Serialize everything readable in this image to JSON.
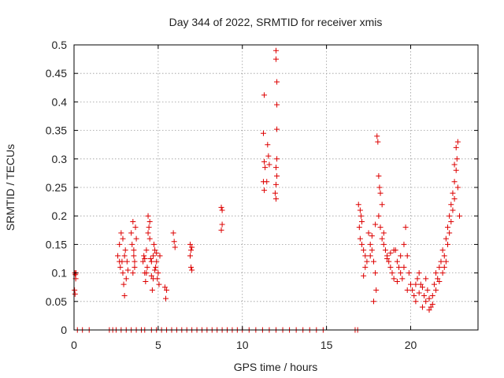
{
  "chart_data": {
    "type": "scatter",
    "title": "Day 344 of 2022, SRMTID for receiver xmis",
    "xlabel": "GPS time / hours",
    "ylabel": "SRMTID / TECUs",
    "xlim": [
      0,
      24
    ],
    "ylim": [
      0,
      0.5
    ],
    "grid": true,
    "marker": "+",
    "colors": {
      "marker": "#dd0000",
      "grid": "#9a9a9a",
      "frame": "#000000"
    },
    "x_ticks": [
      0,
      5,
      10,
      15,
      20
    ],
    "x_tick_labels": [
      "0",
      "5",
      "10",
      "15",
      "20"
    ],
    "y_ticks": [
      0,
      0.05,
      0.1,
      0.15,
      0.2,
      0.25,
      0.3,
      0.35,
      0.4,
      0.45,
      0.5
    ],
    "y_tick_labels": [
      "0",
      "0.05",
      "0.1",
      "0.15",
      "0.2",
      "0.25",
      "0.3",
      "0.35",
      "0.4",
      "0.45",
      "0.5"
    ],
    "series": [
      {
        "name": "SRMTID",
        "points": [
          [
            0.05,
            0.1
          ],
          [
            0.08,
            0.097
          ],
          [
            0.1,
            0.09
          ],
          [
            0.03,
            0.07
          ],
          [
            0.06,
            0.063
          ],
          [
            0.12,
            0.1
          ],
          [
            2.6,
            0.13
          ],
          [
            2.7,
            0.15
          ],
          [
            2.75,
            0.11
          ],
          [
            2.8,
            0.17
          ],
          [
            2.85,
            0.12
          ],
          [
            2.9,
            0.1
          ],
          [
            2.95,
            0.08
          ],
          [
            3.0,
            0.06
          ],
          [
            3.05,
            0.14
          ],
          [
            3.1,
            0.09
          ],
          [
            3.15,
            0.12
          ],
          [
            2.9,
            0.16
          ],
          [
            3.0,
            0.13
          ],
          [
            3.2,
            0.105
          ],
          [
            2.7,
            0.12
          ],
          [
            3.4,
            0.17
          ],
          [
            3.45,
            0.15
          ],
          [
            3.5,
            0.19
          ],
          [
            3.55,
            0.14
          ],
          [
            3.6,
            0.12
          ],
          [
            3.65,
            0.18
          ],
          [
            3.5,
            0.1
          ],
          [
            3.6,
            0.11
          ],
          [
            3.7,
            0.16
          ],
          [
            3.55,
            0.13
          ],
          [
            4.1,
            0.12
          ],
          [
            4.15,
            0.13
          ],
          [
            4.2,
            0.1
          ],
          [
            4.25,
            0.085
          ],
          [
            4.3,
            0.14
          ],
          [
            4.35,
            0.11
          ],
          [
            4.4,
            0.2
          ],
          [
            4.45,
            0.18
          ],
          [
            4.5,
            0.16
          ],
          [
            4.55,
            0.125
          ],
          [
            4.6,
            0.095
          ],
          [
            4.65,
            0.07
          ],
          [
            4.7,
            0.13
          ],
          [
            4.75,
            0.15
          ],
          [
            4.8,
            0.14
          ],
          [
            4.85,
            0.11
          ],
          [
            4.9,
            0.12
          ],
          [
            4.95,
            0.09
          ],
          [
            5.0,
            0.1
          ],
          [
            5.05,
            0.08
          ],
          [
            5.1,
            0.13
          ],
          [
            4.4,
            0.17
          ],
          [
            4.5,
            0.19
          ],
          [
            4.3,
            0.1
          ],
          [
            4.7,
            0.09
          ],
          [
            4.6,
            0.12
          ],
          [
            4.8,
            0.105
          ],
          [
            4.2,
            0.125
          ],
          [
            4.9,
            0.135
          ],
          [
            5.4,
            0.075
          ],
          [
            5.45,
            0.055
          ],
          [
            5.5,
            0.07
          ],
          [
            5.9,
            0.17
          ],
          [
            5.95,
            0.155
          ],
          [
            6.0,
            0.145
          ],
          [
            6.9,
            0.15
          ],
          [
            6.95,
            0.14
          ],
          [
            7.0,
            0.145
          ],
          [
            6.95,
            0.11
          ],
          [
            7.0,
            0.105
          ],
          [
            6.9,
            0.13
          ],
          [
            8.75,
            0.215
          ],
          [
            8.8,
            0.21
          ],
          [
            8.8,
            0.185
          ],
          [
            8.75,
            0.175
          ],
          [
            11.3,
            0.412
          ],
          [
            11.25,
            0.345
          ],
          [
            11.3,
            0.295
          ],
          [
            11.35,
            0.285
          ],
          [
            11.25,
            0.26
          ],
          [
            11.3,
            0.245
          ],
          [
            11.5,
            0.325
          ],
          [
            11.55,
            0.305
          ],
          [
            11.6,
            0.29
          ],
          [
            11.45,
            0.26
          ],
          [
            12.0,
            0.49
          ],
          [
            12.0,
            0.475
          ],
          [
            12.05,
            0.435
          ],
          [
            12.05,
            0.395
          ],
          [
            12.05,
            0.352
          ],
          [
            12.05,
            0.3
          ],
          [
            12.0,
            0.285
          ],
          [
            12.05,
            0.27
          ],
          [
            12.0,
            0.255
          ],
          [
            11.95,
            0.24
          ],
          [
            12.0,
            0.23
          ],
          [
            16.9,
            0.22
          ],
          [
            17.0,
            0.21
          ],
          [
            17.05,
            0.2
          ],
          [
            17.1,
            0.19
          ],
          [
            16.95,
            0.18
          ],
          [
            17.0,
            0.16
          ],
          [
            17.1,
            0.15
          ],
          [
            17.2,
            0.14
          ],
          [
            17.3,
            0.13
          ],
          [
            17.4,
            0.12
          ],
          [
            17.5,
            0.17
          ],
          [
            17.6,
            0.15
          ],
          [
            17.7,
            0.14
          ],
          [
            17.8,
            0.12
          ],
          [
            17.9,
            0.1
          ],
          [
            17.95,
            0.07
          ],
          [
            17.8,
            0.05
          ],
          [
            17.3,
            0.11
          ],
          [
            17.2,
            0.095
          ],
          [
            17.6,
            0.13
          ],
          [
            17.7,
            0.165
          ],
          [
            17.9,
            0.185
          ],
          [
            18.0,
            0.34
          ],
          [
            18.05,
            0.33
          ],
          [
            18.1,
            0.27
          ],
          [
            18.15,
            0.25
          ],
          [
            18.2,
            0.24
          ],
          [
            18.3,
            0.22
          ],
          [
            18.1,
            0.2
          ],
          [
            18.2,
            0.18
          ],
          [
            18.3,
            0.16
          ],
          [
            18.4,
            0.15
          ],
          [
            18.5,
            0.14
          ],
          [
            18.6,
            0.13
          ],
          [
            18.7,
            0.12
          ],
          [
            18.8,
            0.11
          ],
          [
            18.9,
            0.1
          ],
          [
            19.0,
            0.09
          ],
          [
            18.4,
            0.17
          ],
          [
            18.6,
            0.125
          ],
          [
            18.8,
            0.135
          ],
          [
            19.0,
            0.14
          ],
          [
            19.1,
            0.14
          ],
          [
            19.2,
            0.12
          ],
          [
            19.3,
            0.11
          ],
          [
            19.4,
            0.1
          ],
          [
            19.5,
            0.09
          ],
          [
            19.6,
            0.15
          ],
          [
            19.7,
            0.18
          ],
          [
            19.8,
            0.13
          ],
          [
            19.9,
            0.1
          ],
          [
            20.0,
            0.08
          ],
          [
            19.6,
            0.11
          ],
          [
            19.2,
            0.085
          ],
          [
            19.8,
            0.07
          ],
          [
            19.4,
            0.13
          ],
          [
            20.1,
            0.07
          ],
          [
            20.2,
            0.06
          ],
          [
            20.3,
            0.05
          ],
          [
            20.4,
            0.09
          ],
          [
            20.5,
            0.1
          ],
          [
            20.6,
            0.08
          ],
          [
            20.7,
            0.04
          ],
          [
            20.8,
            0.06
          ],
          [
            20.9,
            0.05
          ],
          [
            21.0,
            0.07
          ],
          [
            21.1,
            0.035
          ],
          [
            21.2,
            0.04
          ],
          [
            21.3,
            0.06
          ],
          [
            21.4,
            0.08
          ],
          [
            21.5,
            0.1
          ],
          [
            21.6,
            0.09
          ],
          [
            21.7,
            0.11
          ],
          [
            21.8,
            0.12
          ],
          [
            21.9,
            0.14
          ],
          [
            20.3,
            0.08
          ],
          [
            20.5,
            0.065
          ],
          [
            20.7,
            0.075
          ],
          [
            20.9,
            0.09
          ],
          [
            21.1,
            0.055
          ],
          [
            21.3,
            0.045
          ],
          [
            21.5,
            0.07
          ],
          [
            21.7,
            0.085
          ],
          [
            21.9,
            0.1
          ],
          [
            22.0,
            0.13
          ],
          [
            22.1,
            0.16
          ],
          [
            22.2,
            0.18
          ],
          [
            22.3,
            0.2
          ],
          [
            22.4,
            0.22
          ],
          [
            22.5,
            0.24
          ],
          [
            22.6,
            0.26
          ],
          [
            22.7,
            0.28
          ],
          [
            22.75,
            0.3
          ],
          [
            22.8,
            0.33
          ],
          [
            22.7,
            0.32
          ],
          [
            22.6,
            0.29
          ],
          [
            22.5,
            0.21
          ],
          [
            22.4,
            0.19
          ],
          [
            22.3,
            0.17
          ],
          [
            22.2,
            0.15
          ],
          [
            22.1,
            0.12
          ],
          [
            22.8,
            0.25
          ],
          [
            22.9,
            0.2
          ],
          [
            22.0,
            0.11
          ],
          [
            22.6,
            0.23
          ]
        ],
        "zero_points_x": [
          0.2,
          0.5,
          0.9,
          2.1,
          2.3,
          2.5,
          2.8,
          3.1,
          3.4,
          3.7,
          4.0,
          4.2,
          4.6,
          4.9,
          5.2,
          5.5,
          5.8,
          6.1,
          6.4,
          6.7,
          7.0,
          7.3,
          7.6,
          7.9,
          8.2,
          8.5,
          8.8,
          9.1,
          9.4,
          9.7,
          10.0,
          10.4,
          10.8,
          11.2,
          11.6,
          12.0,
          12.4,
          12.8,
          13.2,
          13.6,
          14.0,
          14.4,
          14.8,
          16.7,
          16.85
        ]
      }
    ]
  }
}
